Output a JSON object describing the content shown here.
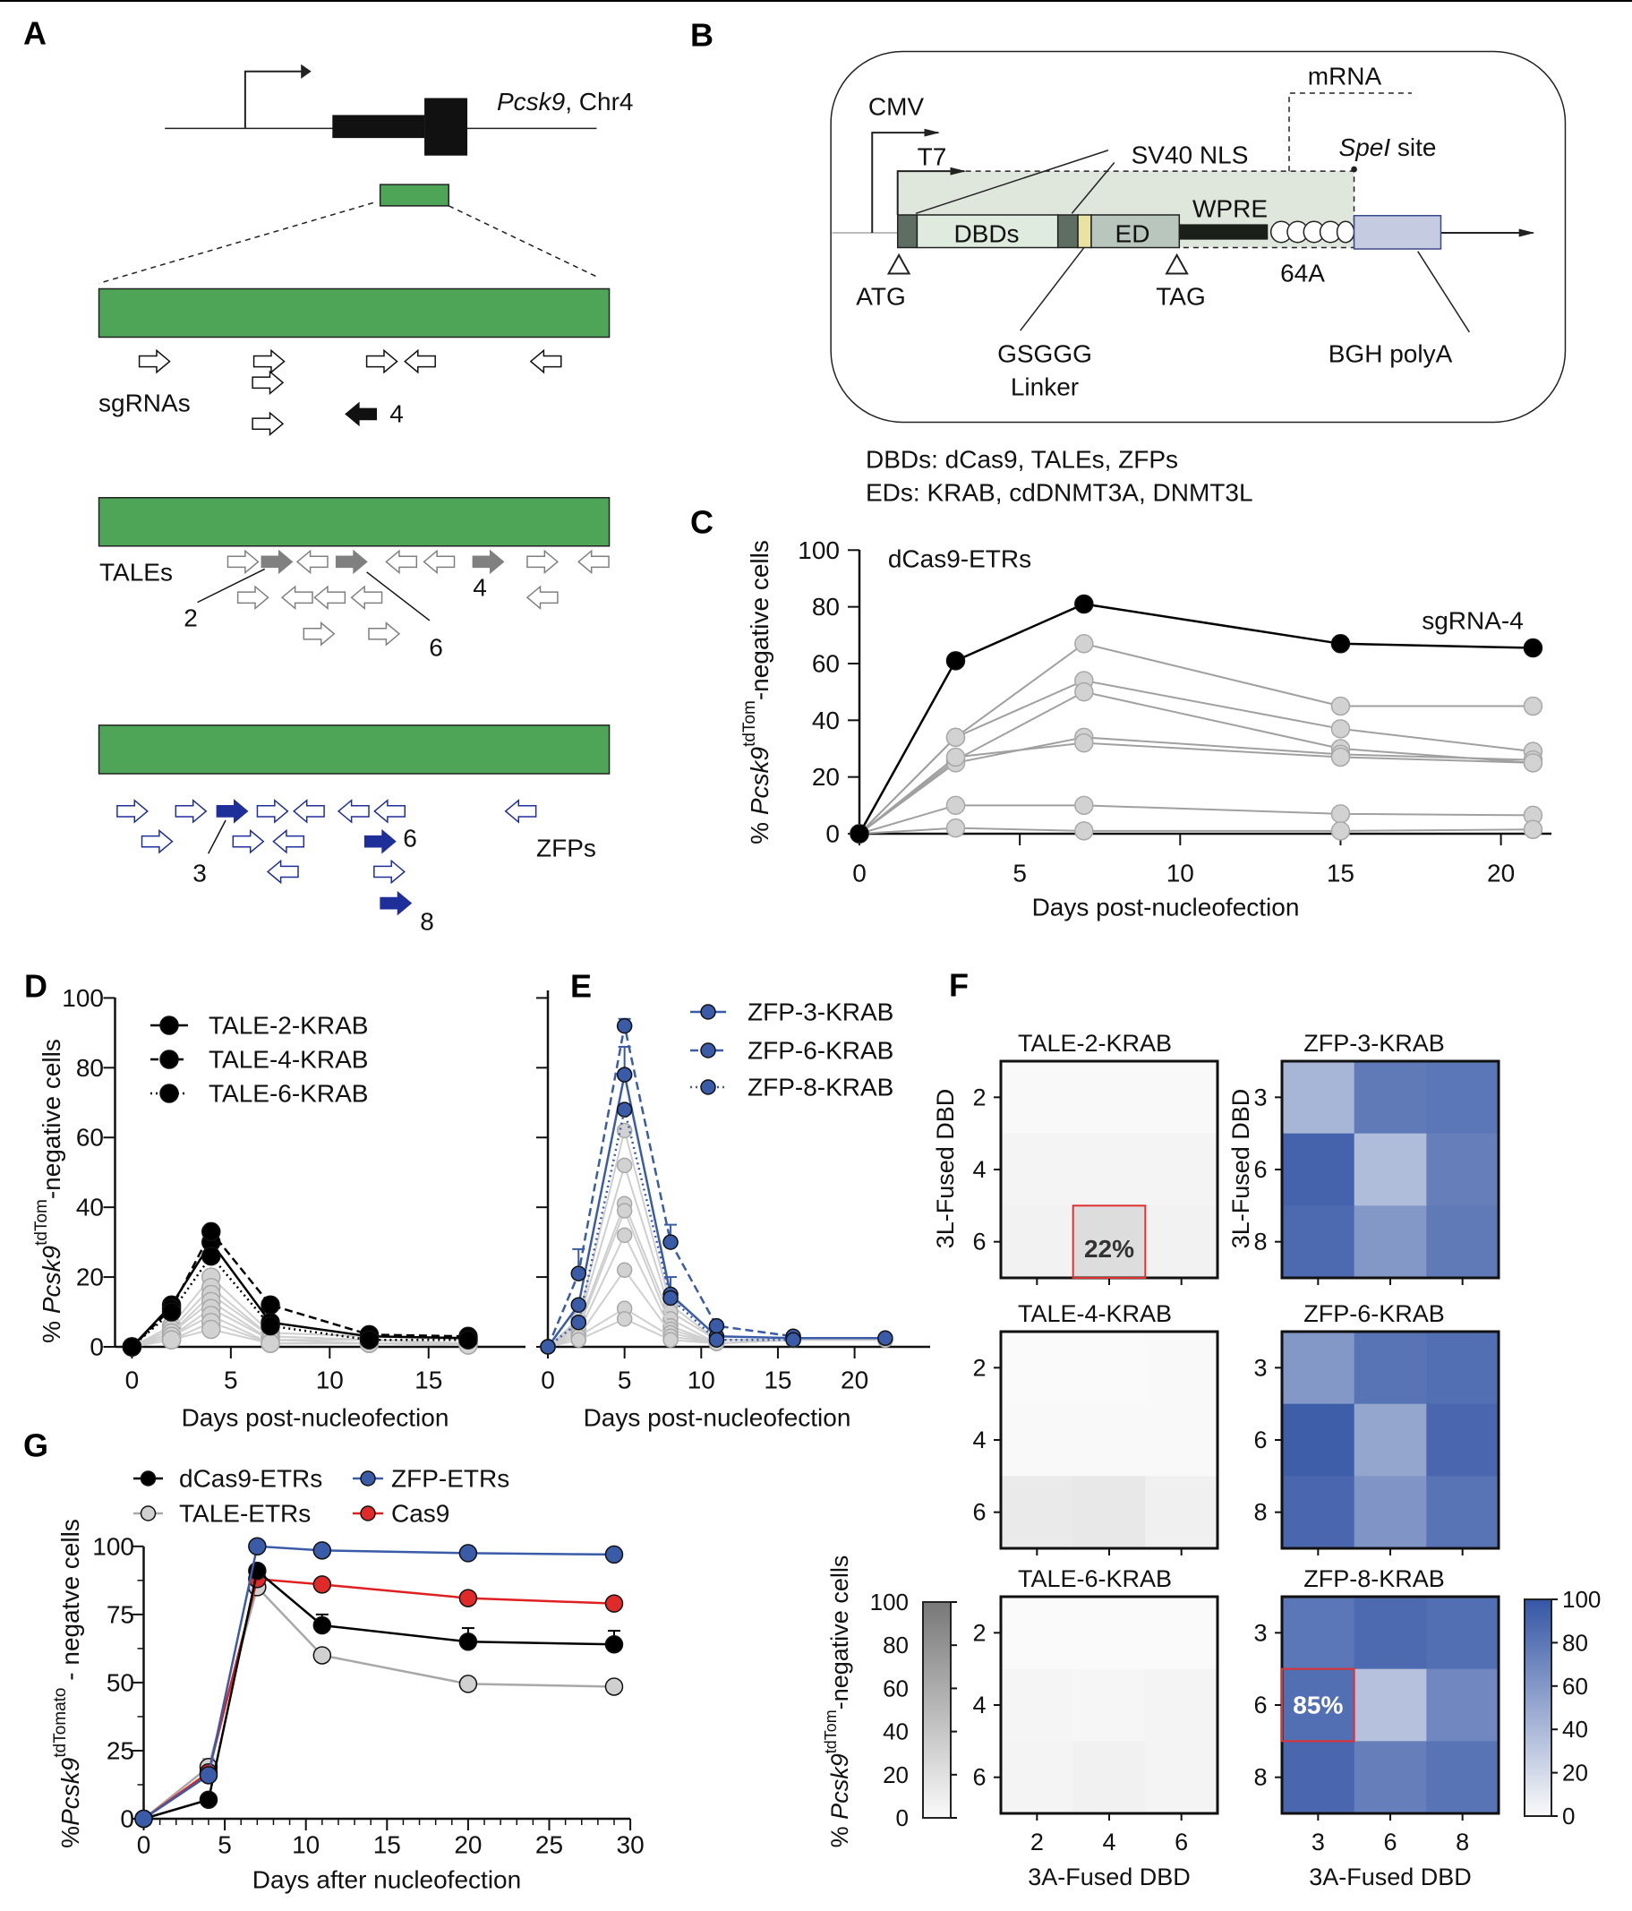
{
  "panel_labels": {
    "A": "A",
    "B": "B",
    "C": "C",
    "D": "D",
    "E": "E",
    "F": "F",
    "G": "G"
  },
  "panel_a": {
    "gene_italic": "Pcsk9",
    "gene_rest": ", Chr4",
    "sgrnas_label": "sgRNAs",
    "sgrna_highlight": "4",
    "tales_label": "TALEs",
    "tale_highlights": [
      "2",
      "6",
      "4"
    ],
    "zfps_label": "ZFPs",
    "zfp_highlights": [
      "3",
      "6",
      "8"
    ],
    "colors": {
      "region": "#4ea557",
      "sgrna": "#111111",
      "tale": "#808080",
      "zfp": "#1f2f9a"
    }
  },
  "panel_b": {
    "cmv": "CMV",
    "t7": "T7",
    "sv40_nls": "SV40 NLS",
    "mrna": "mRNA",
    "spei_italic": "SpeI",
    "spei_rest": " site",
    "dbds": "DBDs",
    "ed": "ED",
    "wpre": "WPRE",
    "polya": "64A",
    "atg": "ATG",
    "tag": "TAG",
    "linker_line1": "GSGGG",
    "linker_line2": "Linker",
    "bgh": "BGH polyA",
    "footnote_dbds": "DBDs: dCas9, TALEs, ZFPs",
    "footnote_eds": "EDs: KRAB, cdDNMT3A, DNMT3L"
  },
  "y_label_parts": {
    "prefix": "% ",
    "gene": "Pcsk9",
    "sup": "tdTom",
    "suffix": "-negative cells"
  },
  "chart_data": [
    {
      "panel": "C",
      "type": "line",
      "title": "dCas9-ETRs",
      "xlabel": "Days post-nucleofection",
      "ylabel": "% Pcsk9tdTom-negative cells",
      "xticks": [
        0,
        5,
        10,
        15,
        20
      ],
      "yticks": [
        0,
        20,
        40,
        60,
        80,
        100
      ],
      "ylim": [
        0,
        100
      ],
      "annotation": "sgRNA-4",
      "series": [
        {
          "color": "#a0a0a0",
          "x": [
            0,
            3,
            7,
            15,
            21
          ],
          "y": [
            0,
            34,
            67,
            45,
            45
          ]
        },
        {
          "color": "#a0a0a0",
          "x": [
            0,
            3,
            7,
            15,
            21
          ],
          "y": [
            0,
            34,
            54,
            37,
            29
          ]
        },
        {
          "color": "#a0a0a0",
          "x": [
            0,
            3,
            7,
            15,
            21
          ],
          "y": [
            0,
            26,
            50,
            30,
            25
          ]
        },
        {
          "color": "#a0a0a0",
          "x": [
            0,
            3,
            7,
            15,
            21
          ],
          "y": [
            0,
            25,
            34,
            28,
            26
          ]
        },
        {
          "color": "#a0a0a0",
          "x": [
            0,
            3,
            7,
            15,
            21
          ],
          "y": [
            0,
            27,
            32,
            27,
            25
          ]
        },
        {
          "color": "#a0a0a0",
          "x": [
            0,
            3,
            7,
            15,
            21
          ],
          "y": [
            0,
            10,
            10,
            7,
            6.5
          ]
        },
        {
          "color": "#a0a0a0",
          "x": [
            0,
            3,
            7,
            15,
            21
          ],
          "y": [
            0,
            2,
            1,
            1,
            1.5
          ]
        },
        {
          "name": "sgRNA-4",
          "color": "#000000",
          "x": [
            0,
            3,
            7,
            15,
            21
          ],
          "y": [
            0,
            61,
            81,
            67,
            65.5
          ]
        }
      ]
    },
    {
      "panel": "D",
      "type": "line",
      "xlabel": "Days post-nucleofection",
      "ylabel": "% Pcsk9tdTom-negative cells",
      "xticks": [
        0,
        5,
        10,
        15
      ],
      "yticks": [
        0,
        20,
        40,
        60,
        80,
        100
      ],
      "ylim": [
        0,
        100
      ],
      "legend": "top-left",
      "series": [
        {
          "color": "#cfcfcf",
          "x": [
            0,
            2,
            4,
            7,
            12,
            17
          ],
          "y": [
            0,
            6,
            20,
            4,
            3,
            2
          ]
        },
        {
          "color": "#cfcfcf",
          "x": [
            0,
            2,
            4,
            7,
            12,
            17
          ],
          "y": [
            0,
            5,
            17,
            3,
            2,
            1
          ]
        },
        {
          "color": "#cfcfcf",
          "x": [
            0,
            2,
            4,
            7,
            12,
            17
          ],
          "y": [
            0,
            4,
            15,
            3,
            2,
            1
          ]
        },
        {
          "color": "#cfcfcf",
          "x": [
            0,
            2,
            4,
            7,
            12,
            17
          ],
          "y": [
            0,
            4,
            13,
            2,
            2,
            1
          ]
        },
        {
          "color": "#cfcfcf",
          "x": [
            0,
            2,
            4,
            7,
            12,
            17
          ],
          "y": [
            0,
            3,
            11,
            2,
            1,
            1
          ]
        },
        {
          "color": "#cfcfcf",
          "x": [
            0,
            2,
            4,
            7,
            12,
            17
          ],
          "y": [
            0,
            3,
            9,
            1,
            1,
            1
          ]
        },
        {
          "color": "#cfcfcf",
          "x": [
            0,
            2,
            4,
            7,
            12,
            17
          ],
          "y": [
            0,
            2,
            7,
            1,
            1,
            0.5
          ]
        },
        {
          "color": "#cfcfcf",
          "x": [
            0,
            2,
            4,
            7,
            12,
            17
          ],
          "y": [
            0,
            2,
            5,
            1,
            1,
            0.5
          ]
        },
        {
          "name": "TALE-2-KRAB",
          "color": "#000000",
          "dash": "solid",
          "x": [
            0,
            2,
            4,
            7,
            12,
            17
          ],
          "y": [
            0,
            12,
            30,
            7,
            3,
            2.5
          ]
        },
        {
          "name": "TALE-4-KRAB",
          "color": "#000000",
          "dash": "dashed",
          "x": [
            0,
            2,
            4,
            7,
            12,
            17
          ],
          "y": [
            0,
            11,
            33,
            12,
            3.5,
            3
          ]
        },
        {
          "name": "TALE-6-KRAB",
          "color": "#000000",
          "dash": "dotted",
          "x": [
            0,
            2,
            4,
            7,
            12,
            17
          ],
          "y": [
            0,
            10,
            26,
            6,
            2,
            2
          ]
        }
      ]
    },
    {
      "panel": "E",
      "type": "line",
      "xlabel": "Days post-nucleofection",
      "xticks": [
        0,
        5,
        10,
        15,
        20
      ],
      "yticks": [
        0,
        20,
        40,
        60,
        80,
        100
      ],
      "ylim": [
        0,
        100
      ],
      "legend": "top-right",
      "series": [
        {
          "color": "#cfcfcf",
          "x": [
            0,
            2,
            5,
            8,
            11,
            16,
            22
          ],
          "y": [
            0,
            8,
            62,
            12,
            2,
            2,
            2
          ]
        },
        {
          "color": "#cfcfcf",
          "x": [
            0,
            2,
            5,
            8,
            11,
            16,
            22
          ],
          "y": [
            0,
            7,
            52,
            10,
            2,
            2,
            2
          ]
        },
        {
          "color": "#cfcfcf",
          "x": [
            0,
            2,
            5,
            8,
            11,
            16,
            22
          ],
          "y": [
            0,
            6,
            41,
            8,
            1,
            2,
            2
          ]
        },
        {
          "color": "#cfcfcf",
          "x": [
            0,
            2,
            5,
            8,
            11,
            16,
            22
          ],
          "y": [
            0,
            5,
            39,
            6,
            1,
            2,
            2
          ]
        },
        {
          "color": "#cfcfcf",
          "x": [
            0,
            2,
            5,
            8,
            11,
            16,
            22
          ],
          "y": [
            0,
            4,
            32,
            5,
            1,
            2,
            2
          ]
        },
        {
          "color": "#cfcfcf",
          "x": [
            0,
            2,
            5,
            8,
            11,
            16,
            22
          ],
          "y": [
            0,
            3,
            22,
            4,
            1,
            2,
            2
          ]
        },
        {
          "color": "#cfcfcf",
          "x": [
            0,
            2,
            5,
            8,
            11,
            16,
            22
          ],
          "y": [
            0,
            3,
            11,
            3,
            1,
            2,
            2
          ]
        },
        {
          "color": "#cfcfcf",
          "x": [
            0,
            2,
            5,
            8,
            11,
            16,
            22
          ],
          "y": [
            0,
            2,
            8,
            2,
            1,
            2,
            2
          ]
        },
        {
          "name": "ZFP-3-KRAB",
          "color": "#3a5ba8",
          "dash": "solid",
          "x": [
            0,
            2,
            5,
            8,
            11,
            16,
            22
          ],
          "y": [
            0,
            12,
            78,
            15,
            3,
            2.5,
            2.5
          ],
          "error": [
            0,
            0,
            8,
            5,
            0,
            0,
            0
          ]
        },
        {
          "name": "ZFP-6-KRAB",
          "color": "#3a5ba8",
          "dash": "dashed",
          "x": [
            0,
            2,
            5,
            8,
            11,
            16
          ],
          "y": [
            0,
            21,
            92,
            30,
            6,
            3
          ],
          "error": [
            0,
            7,
            2,
            5,
            0,
            0
          ]
        },
        {
          "name": "ZFP-8-KRAB",
          "color": "#3a5ba8",
          "dash": "dotted",
          "x": [
            0,
            2,
            5,
            8,
            11,
            16
          ],
          "y": [
            0,
            7,
            68,
            14,
            2,
            2
          ],
          "error": [
            0,
            0,
            0,
            0,
            0,
            0
          ]
        }
      ]
    },
    {
      "panel": "F",
      "type": "heatmap",
      "xlabel": "3A-Fused DBD",
      "ylabel": "3L-Fused DBD",
      "colorbar_label": "% Pcsk9tdTom-negative cells",
      "colorbar_ticks": [
        0,
        20,
        40,
        60,
        80,
        100
      ],
      "colors": {
        "tale_max": "#787878",
        "zfp_max": "#3556a6",
        "highlight": "#e03030"
      },
      "maps": [
        {
          "title": "TALE-2-KRAB",
          "scale": "grey",
          "rows": [
            "2",
            "4",
            "6"
          ],
          "cols": [
            "2",
            "4",
            "6"
          ],
          "values": [
            [
              1,
              1,
              1
            ],
            [
              5,
              5,
              5
            ],
            [
              6,
              22,
              6
            ]
          ],
          "highlight": {
            "row": 2,
            "col": 1,
            "label": "22%"
          }
        },
        {
          "title": "ZFP-3-KRAB",
          "scale": "blue",
          "rows": [
            "3",
            "6",
            "8"
          ],
          "cols": [
            "3",
            "6",
            "8"
          ],
          "values": [
            [
              42,
              78,
              80
            ],
            [
              92,
              38,
              75
            ],
            [
              88,
              60,
              78
            ]
          ]
        },
        {
          "title": "TALE-4-KRAB",
          "scale": "grey",
          "rows": [
            "2",
            "4",
            "6"
          ],
          "cols": [
            "2",
            "4",
            "6"
          ],
          "values": [
            [
              0,
              0,
              1
            ],
            [
              1,
              1,
              1
            ],
            [
              12,
              14,
              8
            ]
          ]
        },
        {
          "title": "ZFP-6-KRAB",
          "scale": "blue",
          "rows": [
            "3",
            "6",
            "8"
          ],
          "cols": [
            "3",
            "6",
            "8"
          ],
          "values": [
            [
              60,
              82,
              85
            ],
            [
              95,
              52,
              90
            ],
            [
              90,
              62,
              82
            ]
          ]
        },
        {
          "title": "TALE-6-KRAB",
          "scale": "grey",
          "rows": [
            "2",
            "4",
            "6"
          ],
          "cols": [
            "2",
            "4",
            "6"
          ],
          "values": [
            [
              0,
              0,
              0
            ],
            [
              4,
              3,
              5
            ],
            [
              5,
              7,
              5
            ]
          ]
        },
        {
          "title": "ZFP-8-KRAB",
          "scale": "blue",
          "rows": [
            "3",
            "6",
            "8"
          ],
          "cols": [
            "3",
            "6",
            "8"
          ],
          "values": [
            [
              80,
              88,
              85
            ],
            [
              85,
              35,
              70
            ],
            [
              90,
              75,
              82
            ]
          ],
          "highlight": {
            "row": 1,
            "col": 0,
            "label": "85%"
          }
        }
      ]
    },
    {
      "panel": "G",
      "type": "line",
      "xlabel": "Days after nucleofection",
      "ylabel": "%Pcsk9tdTomato - negatve cells",
      "ylabel_parts": {
        "prefix": "%",
        "gene": "Pcsk9",
        "sup": "tdTomato",
        "suffix": " - negatve cells"
      },
      "xticks": [
        0,
        5,
        10,
        15,
        20,
        25,
        30
      ],
      "yticks": [
        0,
        25,
        50,
        75,
        100
      ],
      "ylim": [
        0,
        100
      ],
      "legend": "top",
      "series": [
        {
          "name": "TALE-ETRs",
          "color": "#a8a8a8",
          "fill": "#d0d0d0",
          "x": [
            0,
            4,
            7,
            11,
            20,
            29
          ],
          "y": [
            0,
            19,
            85,
            60,
            49.5,
            48.5
          ],
          "error": [
            0,
            3,
            0,
            2,
            0,
            0
          ]
        },
        {
          "name": "Cas9",
          "color": "#e02020",
          "fill": "#e02a2a",
          "x": [
            0,
            4,
            7,
            11,
            20,
            29
          ],
          "y": [
            0,
            17,
            88,
            86,
            81,
            79
          ],
          "error": [
            0,
            0,
            0,
            0,
            0,
            0
          ]
        },
        {
          "name": "dCas9-ETRs",
          "color": "#000000",
          "fill": "#000000",
          "x": [
            0,
            4,
            7,
            11,
            20,
            29
          ],
          "y": [
            0,
            7,
            91,
            71,
            65,
            64
          ],
          "error": [
            0,
            0,
            0,
            4,
            5,
            5
          ]
        },
        {
          "name": "ZFP-ETRs",
          "color": "#3a5ba8",
          "fill": "#3a5ba8",
          "x": [
            0,
            4,
            7,
            11,
            20,
            29
          ],
          "y": [
            0,
            16,
            100,
            98.5,
            97.5,
            97
          ],
          "error": [
            0,
            0,
            0,
            0,
            0,
            0
          ]
        }
      ]
    }
  ]
}
